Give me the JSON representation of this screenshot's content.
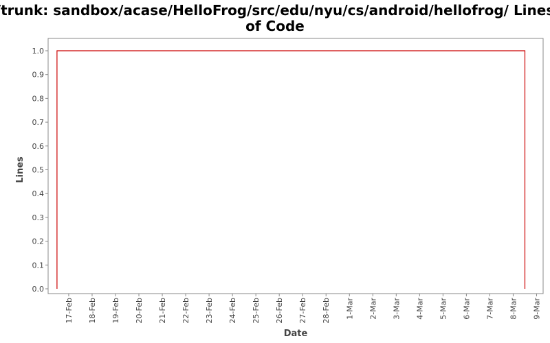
{
  "chart_data": {
    "type": "line",
    "title_lines": [
      "/trunk: sandbox/acase/HelloFrog/src/edu/nyu/cs/android/hellofrog/ Lines",
      "of Code"
    ],
    "xlabel": "Date",
    "ylabel": "Lines",
    "x_ticks": [
      "17-Feb",
      "18-Feb",
      "19-Feb",
      "20-Feb",
      "21-Feb",
      "22-Feb",
      "23-Feb",
      "24-Feb",
      "25-Feb",
      "26-Feb",
      "27-Feb",
      "28-Feb",
      "1-Mar",
      "2-Mar",
      "3-Mar",
      "4-Mar",
      "5-Mar",
      "6-Mar",
      "7-Mar",
      "8-Mar",
      "9-Mar"
    ],
    "y_ticks": [
      "0.0",
      "0.1",
      "0.2",
      "0.3",
      "0.4",
      "0.5",
      "0.6",
      "0.7",
      "0.8",
      "0.9",
      "1.0"
    ],
    "ylim": [
      0,
      1.0
    ],
    "xlim": [
      "16-Feb",
      "9-Mar"
    ],
    "grid": false,
    "series": [
      {
        "color": "#cc0000",
        "points": [
          {
            "x": "16-Feb",
            "y": 0
          },
          {
            "x": "16-Feb",
            "y": 1
          },
          {
            "x": "8-Mar",
            "y": 1
          },
          {
            "x": "8-Mar",
            "y": 0
          }
        ]
      }
    ]
  }
}
